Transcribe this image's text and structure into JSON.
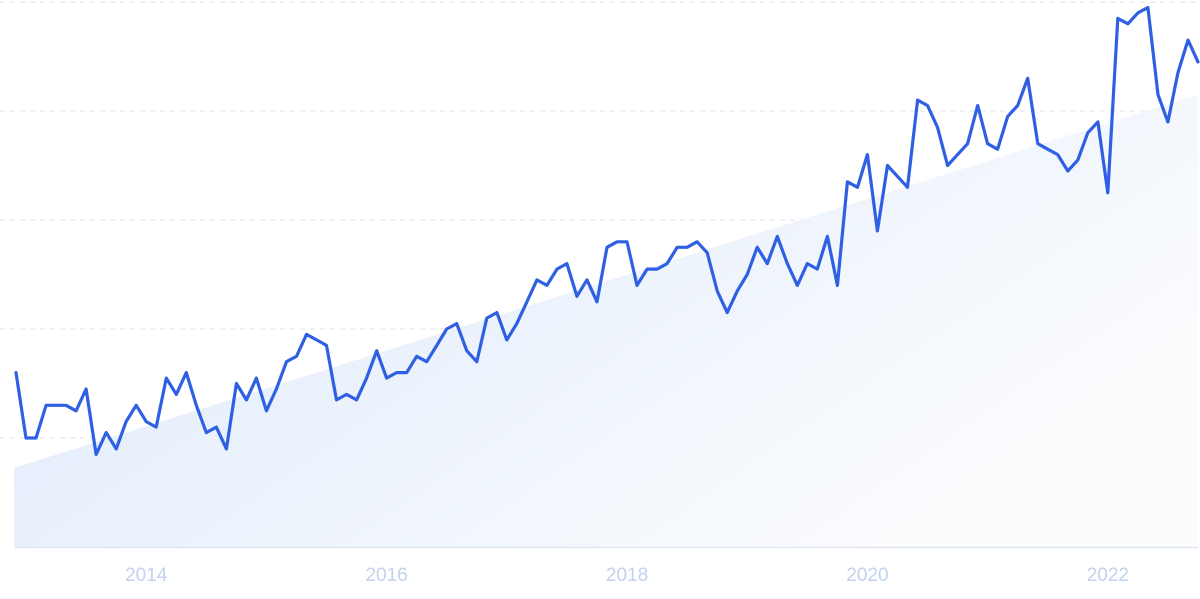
{
  "chart_data": {
    "type": "line",
    "title": "",
    "xlabel": "",
    "ylabel": "",
    "grid": true,
    "xlim": [
      2012.9,
      2022.75
    ],
    "ylim": [
      0,
      100
    ],
    "x_ticks": [
      {
        "value": 2014,
        "label": "2014"
      },
      {
        "value": 2016,
        "label": "2016"
      },
      {
        "value": 2018,
        "label": "2018"
      },
      {
        "value": 2020,
        "label": "2020"
      },
      {
        "value": 2022,
        "label": "2022"
      }
    ],
    "y_gridlines": [
      20,
      40,
      60,
      80,
      100
    ],
    "trend": {
      "x": [
        2012.9,
        2022.75
      ],
      "y": [
        14.5,
        83
      ]
    },
    "series": [
      {
        "x": [
          2012.917,
          2013.0,
          2013.083,
          2013.167,
          2013.25,
          2013.333,
          2013.417,
          2013.5,
          2013.583,
          2013.667,
          2013.75,
          2013.833,
          2013.917,
          2014.0,
          2014.083,
          2014.167,
          2014.25,
          2014.333,
          2014.417,
          2014.5,
          2014.583,
          2014.667,
          2014.75,
          2014.833,
          2014.917,
          2015.0,
          2015.083,
          2015.167,
          2015.25,
          2015.333,
          2015.417,
          2015.5,
          2015.583,
          2015.667,
          2015.75,
          2015.833,
          2015.917,
          2016.0,
          2016.083,
          2016.167,
          2016.25,
          2016.333,
          2016.417,
          2016.5,
          2016.583,
          2016.667,
          2016.75,
          2016.833,
          2016.917,
          2017.0,
          2017.083,
          2017.167,
          2017.25,
          2017.333,
          2017.417,
          2017.5,
          2017.583,
          2017.667,
          2017.75,
          2017.833,
          2017.917,
          2018.0,
          2018.083,
          2018.167,
          2018.25,
          2018.333,
          2018.417,
          2018.5,
          2018.583,
          2018.667,
          2018.75,
          2018.833,
          2018.917,
          2019.0,
          2019.083,
          2019.167,
          2019.25,
          2019.333,
          2019.417,
          2019.5,
          2019.583,
          2019.667,
          2019.75,
          2019.833,
          2019.917,
          2020.0,
          2020.083,
          2020.167,
          2020.25,
          2020.333,
          2020.417,
          2020.5,
          2020.583,
          2020.667,
          2020.75,
          2020.833,
          2020.917,
          2021.0,
          2021.083,
          2021.167,
          2021.25,
          2021.333,
          2021.417,
          2021.5,
          2021.583,
          2021.667,
          2021.75,
          2021.833,
          2021.917,
          2022.0,
          2022.083,
          2022.167,
          2022.25,
          2022.333,
          2022.417,
          2022.5,
          2022.583,
          2022.667,
          2022.75
        ],
        "y": [
          32,
          20,
          20,
          26,
          26,
          26,
          25,
          29,
          17,
          21,
          18,
          23,
          26,
          23,
          22,
          31,
          28,
          32,
          26,
          21,
          22,
          18,
          30,
          27,
          31,
          25,
          29,
          34,
          35,
          39,
          38,
          37,
          27,
          28,
          27,
          31,
          36,
          31,
          32,
          32,
          35,
          34,
          37,
          40,
          41,
          36,
          34,
          42,
          43,
          38,
          41,
          45,
          49,
          48,
          51,
          52,
          46,
          49,
          45,
          55,
          56,
          56,
          48,
          51,
          51,
          52,
          55,
          55,
          56,
          54,
          47,
          43,
          47,
          50,
          55,
          52,
          57,
          52,
          48,
          52,
          51,
          57,
          48,
          67,
          66,
          72,
          58,
          70,
          68,
          66,
          82,
          81,
          77,
          70,
          72,
          74,
          81,
          74,
          73,
          79,
          81,
          86,
          74,
          73,
          72,
          69,
          71,
          76,
          78,
          65,
          97,
          96,
          98,
          99,
          83,
          78,
          87,
          93,
          89
        ]
      }
    ]
  },
  "colors": {
    "line": "#2f5fe3",
    "area_start": "#dbe8fa",
    "area_end": "#fbfcfe",
    "grid": "#dde2ea",
    "axis": "#e1e7f5",
    "tick_label": "#c2d1ef"
  }
}
